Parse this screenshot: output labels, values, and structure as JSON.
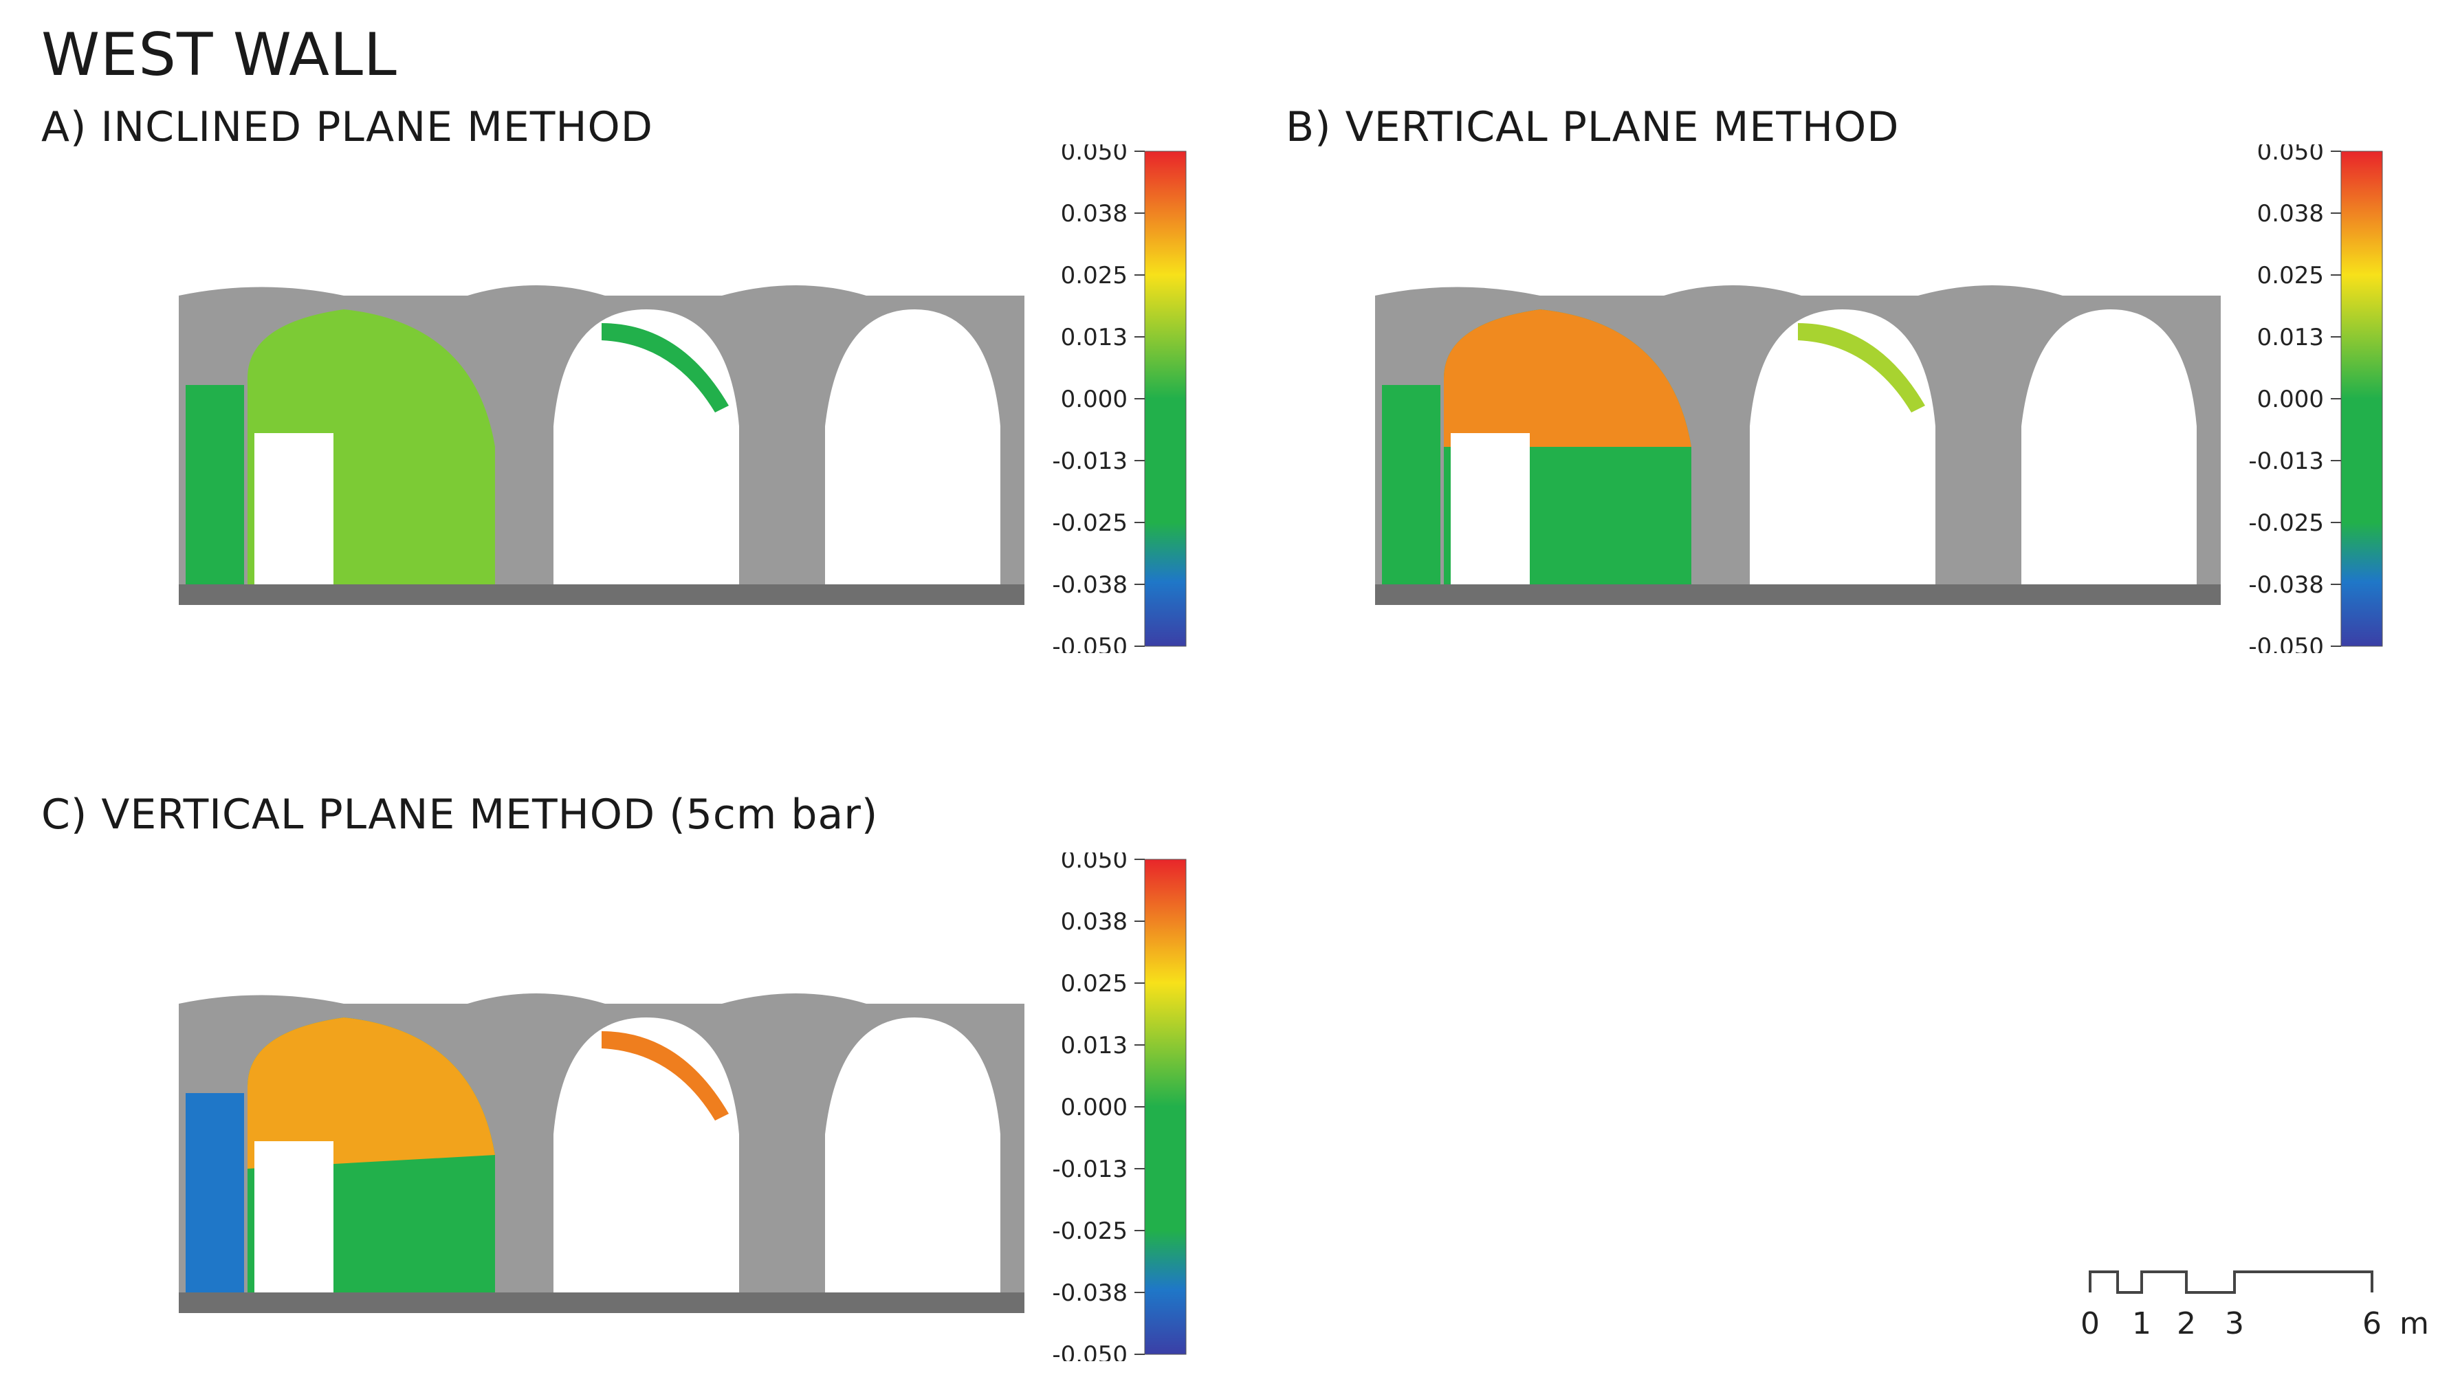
{
  "title": "WEST WALL",
  "panels": [
    {
      "label": "A) INCLINED PLANE METHOD",
      "left_fill": "#7ccb35",
      "arch_fill": "#22b04b",
      "arch_tint": "#22b04b"
    },
    {
      "label": "B) VERTICAL PLANE METHOD",
      "left_fill": "#f08a1f",
      "arch_fill": "#22b04b",
      "arch_tint": "#a8d330"
    },
    {
      "label": "C) VERTICAL PLANE METHOD (5cm bar)",
      "left_fill": "#f2a31c",
      "arch_fill": "#22b04b",
      "arch_tint": "#ef7e1e"
    }
  ],
  "colorbar": {
    "ticks": [
      "0.050",
      "0.038",
      "0.025",
      "0.013",
      "0.000",
      "-0.013",
      "-0.025",
      "-0.038",
      "-0.050"
    ],
    "colors": [
      "#e8262a",
      "#f08a1f",
      "#f7e11a",
      "#a8d330",
      "#22b04b",
      "#22b04b",
      "#22b04b",
      "#1f77c8",
      "#3b3fa6"
    ]
  },
  "scale_bar": {
    "labels": [
      "0",
      "1",
      "2",
      "3",
      "6"
    ],
    "unit": "m"
  }
}
